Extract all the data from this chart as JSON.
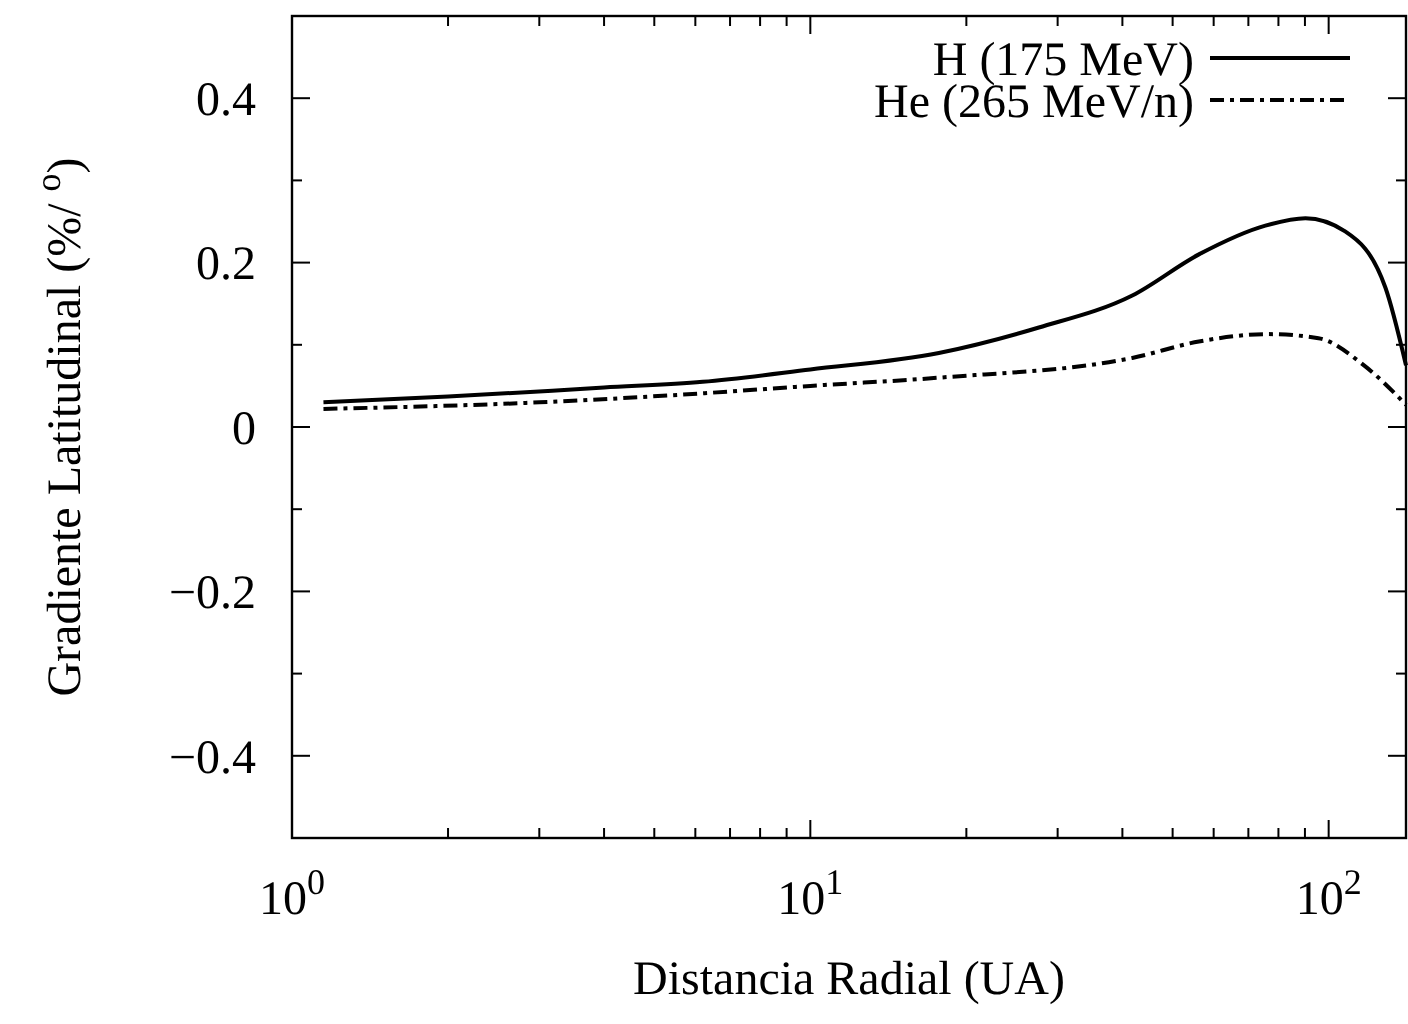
{
  "chart_data": {
    "type": "line",
    "xlabel": "Distancia Radial  (UA)",
    "ylabel": "Gradiente Latitudinal (%/ $^{o}$)",
    "log": "x",
    "xlim": [
      1,
      141
    ],
    "ylim": [
      -0.5,
      0.5
    ],
    "xticks": [
      {
        "value": 1,
        "label": "10$^{0}$"
      },
      {
        "value": 2,
        "label": null
      },
      {
        "value": 3,
        "label": null
      },
      {
        "value": 4,
        "label": null
      },
      {
        "value": 5,
        "label": null
      },
      {
        "value": 6,
        "label": null
      },
      {
        "value": 7,
        "label": null
      },
      {
        "value": 8,
        "label": null
      },
      {
        "value": 9,
        "label": null
      },
      {
        "value": 10,
        "label": "10$^{1}$"
      },
      {
        "value": 20,
        "label": null
      },
      {
        "value": 30,
        "label": null
      },
      {
        "value": 40,
        "label": null
      },
      {
        "value": 50,
        "label": null
      },
      {
        "value": 60,
        "label": null
      },
      {
        "value": 70,
        "label": null
      },
      {
        "value": 80,
        "label": null
      },
      {
        "value": 90,
        "label": null
      },
      {
        "value": 100,
        "label": "10$^{2}$"
      }
    ],
    "yticks": [
      {
        "value": -0.4,
        "label": "−0.4"
      },
      {
        "value": -0.3,
        "label": null
      },
      {
        "value": -0.2,
        "label": "−0.2"
      },
      {
        "value": -0.1,
        "label": null
      },
      0,
      {
        "value": 0.1,
        "label": null
      },
      0.2,
      {
        "value": 0.3,
        "label": null
      },
      0.4
    ],
    "grid": false,
    "legend": "top right",
    "marker": "none",
    "series": [
      {
        "name": "H (175 MeV)",
        "color": "#000000",
        "line_style": "solid",
        "x": [
          1.15,
          2,
          4,
          6.2,
          10,
          17.7,
          27.6,
          41.8,
          56.2,
          75.5,
          90.2,
          107.6,
          128.6,
          141
        ],
        "values": [
          0.03,
          0.037,
          0.048,
          0.055,
          0.07,
          0.09,
          0.121,
          0.16,
          0.21,
          0.245,
          0.254,
          0.238,
          0.17,
          0.075
        ]
      },
      {
        "name": "He (265 MeV/n)",
        "color": "#000000",
        "line_style": "dashdot",
        "x": [
          1.15,
          3,
          6.2,
          10,
          17.7,
          41.8,
          56.2,
          76.6,
          95.6,
          117,
          141
        ],
        "values": [
          0.022,
          0.03,
          0.041,
          0.05,
          0.06,
          0.084,
          0.104,
          0.113,
          0.108,
          0.075,
          0.027
        ]
      }
    ]
  }
}
